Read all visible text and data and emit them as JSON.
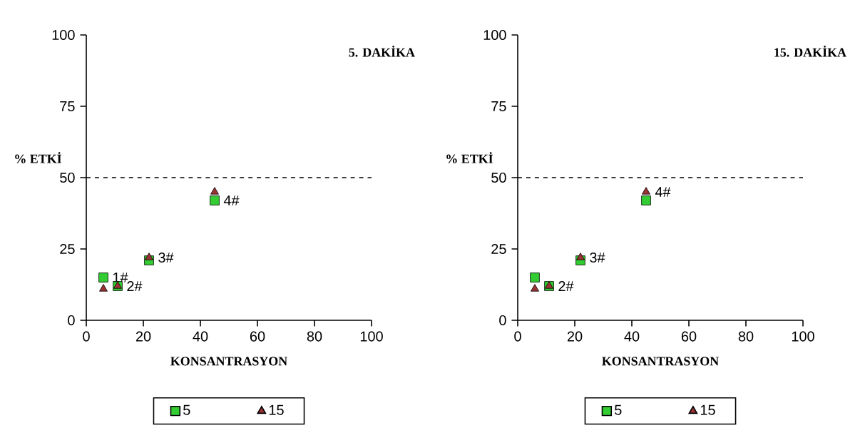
{
  "chart_data": [
    {
      "type": "scatter",
      "title": "5. DAKİKA",
      "xlabel": "KONSANTRASYON",
      "ylabel": "% ETKİ",
      "xlim": [
        0,
        100
      ],
      "ylim": [
        0,
        100
      ],
      "xticks": [
        0,
        20,
        40,
        60,
        80,
        100
      ],
      "yticks": [
        0,
        25,
        50,
        75,
        100
      ],
      "legend": "bottom",
      "series": [
        {
          "name": "5",
          "color": "#33cc33",
          "marker": "square",
          "x": [
            6,
            11,
            22,
            45
          ],
          "values": [
            15,
            12,
            21,
            42
          ]
        },
        {
          "name": "15",
          "color": "#993333",
          "marker": "triangle",
          "x": [
            6,
            11,
            22,
            45
          ],
          "values": [
            11,
            12,
            22,
            45
          ]
        }
      ],
      "ref_lines": [
        {
          "axis": "y",
          "value": 50,
          "line_style": "dashed"
        }
      ],
      "annotations": [
        {
          "text": "1#",
          "x": 6,
          "y": 15
        },
        {
          "text": "2#",
          "x": 11,
          "y": 12
        },
        {
          "text": "3#",
          "x": 22,
          "y": 22
        },
        {
          "text": "4#",
          "x": 45,
          "y": 42
        }
      ]
    },
    {
      "type": "scatter",
      "title": "15. DAKİKA",
      "xlabel": "KONSANTRASYON",
      "ylabel": "% ETKİ",
      "xlim": [
        0,
        100
      ],
      "ylim": [
        0,
        100
      ],
      "xticks": [
        0,
        20,
        40,
        60,
        80,
        100
      ],
      "yticks": [
        0,
        25,
        50,
        75,
        100
      ],
      "legend": "bottom",
      "series": [
        {
          "name": "5",
          "color": "#33cc33",
          "marker": "square",
          "x": [
            6,
            11,
            22,
            45
          ],
          "values": [
            15,
            12,
            21,
            42
          ]
        },
        {
          "name": "15",
          "color": "#993333",
          "marker": "triangle",
          "x": [
            6,
            11,
            22,
            45
          ],
          "values": [
            11,
            12,
            22,
            45
          ]
        }
      ],
      "ref_lines": [
        {
          "axis": "y",
          "value": 50,
          "line_style": "dashed"
        }
      ],
      "annotations": [
        {
          "text": "2#",
          "x": 11,
          "y": 12
        },
        {
          "text": "3#",
          "x": 22,
          "y": 22
        },
        {
          "text": "4#",
          "x": 45,
          "y": 45
        }
      ]
    }
  ]
}
